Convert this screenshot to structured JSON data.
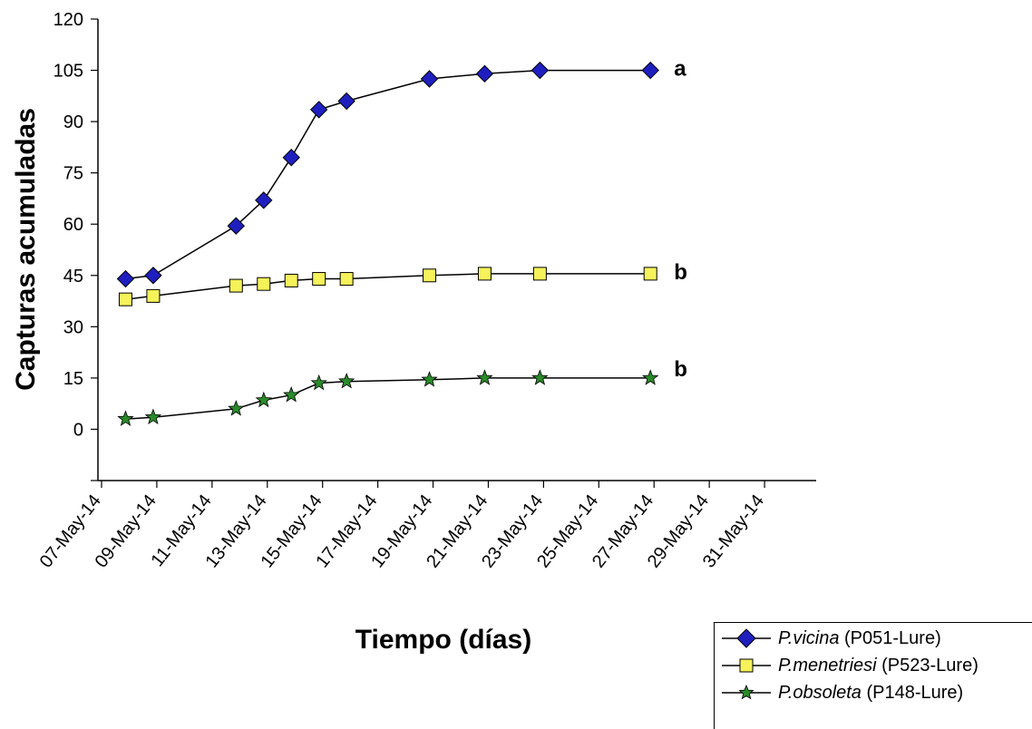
{
  "chart_data": {
    "type": "line",
    "title": "",
    "xlabel": "Tiempo (días)",
    "ylabel": "Capturas acumuladas",
    "ylim": [
      -15,
      120
    ],
    "yticks": [
      0,
      15,
      30,
      45,
      60,
      75,
      90,
      105,
      120
    ],
    "xlim": [
      "2014-05-07",
      "2014-06-02"
    ],
    "xtick_labels": [
      "07-May-14",
      "09-May-14",
      "11-May-14",
      "13-May-14",
      "15-May-14",
      "17-May-14",
      "19-May-14",
      "21-May-14",
      "23-May-14",
      "25-May-14",
      "27-May-14",
      "29-May-14",
      "31-May-14"
    ],
    "x": [
      "2014-05-08",
      "2014-05-09",
      "2014-05-12",
      "2014-05-13",
      "2014-05-14",
      "2014-05-15",
      "2014-05-16",
      "2014-05-19",
      "2014-05-21",
      "2014-05-23",
      "2014-05-27"
    ],
    "grid": false,
    "legend_position": "bottom-right",
    "series": [
      {
        "name_italic": "P.vicina",
        "name_rest": " (P051-Lure)",
        "marker": "diamond",
        "color": "#1f1fbf",
        "values": [
          44,
          45,
          59.5,
          67,
          79.5,
          93.5,
          96,
          102.5,
          104,
          105,
          105
        ],
        "significance": "a"
      },
      {
        "name_italic": "P.menetriesi",
        "name_rest": " (P523-Lure)",
        "marker": "square",
        "color": "#f6f25a",
        "values": [
          38,
          39,
          42,
          42.5,
          43.5,
          44,
          44,
          45,
          45.5,
          45.5,
          45.5
        ],
        "significance": "b"
      },
      {
        "name_italic": "P.obsoleta",
        "name_rest": " (P148-Lure)",
        "marker": "star",
        "color": "#2a8a2a",
        "values": [
          3,
          3.5,
          6,
          8.5,
          10,
          13.5,
          14,
          14.5,
          15,
          15,
          15
        ],
        "significance": "b"
      }
    ]
  }
}
